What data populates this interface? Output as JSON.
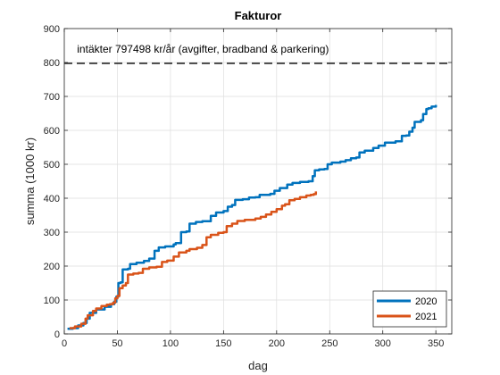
{
  "chart_data": {
    "type": "line",
    "title": "Fakturor",
    "xlabel": "dag",
    "ylabel": "summa (1000 kr)",
    "xlim": [
      0,
      365
    ],
    "ylim": [
      0,
      900
    ],
    "xticks": [
      0,
      50,
      100,
      150,
      200,
      250,
      300,
      350
    ],
    "yticks": [
      0,
      100,
      200,
      300,
      400,
      500,
      600,
      700,
      800,
      900
    ],
    "grid": true,
    "legend_position": "bottom-right",
    "reference_line": {
      "y": 797.498,
      "style": "dashed",
      "color": "#262626",
      "label": "intäkter 797498 kr/år (avgifter, bradband & parkering)"
    },
    "series": [
      {
        "name": "2020",
        "color": "#0072BD",
        "points": [
          [
            3,
            15
          ],
          [
            8,
            17
          ],
          [
            13,
            25
          ],
          [
            18,
            32
          ],
          [
            21,
            45
          ],
          [
            24,
            62
          ],
          [
            30,
            72
          ],
          [
            38,
            80
          ],
          [
            44,
            88
          ],
          [
            47,
            95
          ],
          [
            49,
            110
          ],
          [
            51,
            150
          ],
          [
            53,
            152
          ],
          [
            55,
            190
          ],
          [
            60,
            192
          ],
          [
            62,
            206
          ],
          [
            68,
            210
          ],
          [
            75,
            215
          ],
          [
            80,
            222
          ],
          [
            85,
            245
          ],
          [
            89,
            255
          ],
          [
            95,
            258
          ],
          [
            103,
            264
          ],
          [
            105,
            268
          ],
          [
            110,
            300
          ],
          [
            115,
            302
          ],
          [
            118,
            325
          ],
          [
            124,
            330
          ],
          [
            130,
            332
          ],
          [
            138,
            348
          ],
          [
            143,
            358
          ],
          [
            150,
            362
          ],
          [
            154,
            375
          ],
          [
            158,
            380
          ],
          [
            161,
            395
          ],
          [
            168,
            397
          ],
          [
            174,
            402
          ],
          [
            180,
            403
          ],
          [
            184,
            410
          ],
          [
            194,
            413
          ],
          [
            198,
            422
          ],
          [
            203,
            430
          ],
          [
            210,
            440
          ],
          [
            215,
            445
          ],
          [
            222,
            448
          ],
          [
            230,
            450
          ],
          [
            234,
            465
          ],
          [
            236,
            482
          ],
          [
            240,
            485
          ],
          [
            245,
            486
          ],
          [
            248,
            500
          ],
          [
            252,
            505
          ],
          [
            260,
            508
          ],
          [
            265,
            512
          ],
          [
            270,
            518
          ],
          [
            275,
            520
          ],
          [
            278,
            535
          ],
          [
            283,
            540
          ],
          [
            291,
            548
          ],
          [
            296,
            555
          ],
          [
            302,
            564
          ],
          [
            312,
            568
          ],
          [
            318,
            584
          ],
          [
            322,
            585
          ],
          [
            325,
            596
          ],
          [
            328,
            608
          ],
          [
            330,
            625
          ],
          [
            336,
            630
          ],
          [
            338,
            648
          ],
          [
            341,
            663
          ],
          [
            343,
            665
          ],
          [
            346,
            670
          ],
          [
            350,
            675
          ]
        ]
      },
      {
        "name": "2021",
        "color": "#D95319",
        "points": [
          [
            5,
            17
          ],
          [
            10,
            22
          ],
          [
            16,
            30
          ],
          [
            20,
            45
          ],
          [
            22,
            55
          ],
          [
            27,
            68
          ],
          [
            30,
            75
          ],
          [
            35,
            82
          ],
          [
            40,
            86
          ],
          [
            43,
            88
          ],
          [
            46,
            92
          ],
          [
            48,
            105
          ],
          [
            50,
            112
          ],
          [
            52,
            135
          ],
          [
            55,
            143
          ],
          [
            58,
            150
          ],
          [
            60,
            175
          ],
          [
            65,
            178
          ],
          [
            70,
            180
          ],
          [
            74,
            192
          ],
          [
            80,
            196
          ],
          [
            87,
            198
          ],
          [
            92,
            212
          ],
          [
            97,
            216
          ],
          [
            103,
            228
          ],
          [
            108,
            240
          ],
          [
            115,
            245
          ],
          [
            118,
            250
          ],
          [
            125,
            254
          ],
          [
            130,
            262
          ],
          [
            134,
            285
          ],
          [
            138,
            292
          ],
          [
            145,
            298
          ],
          [
            150,
            300
          ],
          [
            153,
            318
          ],
          [
            158,
            325
          ],
          [
            163,
            333
          ],
          [
            170,
            336
          ],
          [
            180,
            340
          ],
          [
            185,
            345
          ],
          [
            190,
            352
          ],
          [
            195,
            360
          ],
          [
            200,
            368
          ],
          [
            205,
            378
          ],
          [
            208,
            382
          ],
          [
            212,
            394
          ],
          [
            217,
            398
          ],
          [
            222,
            403
          ],
          [
            228,
            408
          ],
          [
            232,
            410
          ],
          [
            235,
            412
          ],
          [
            237,
            420
          ]
        ]
      }
    ]
  }
}
